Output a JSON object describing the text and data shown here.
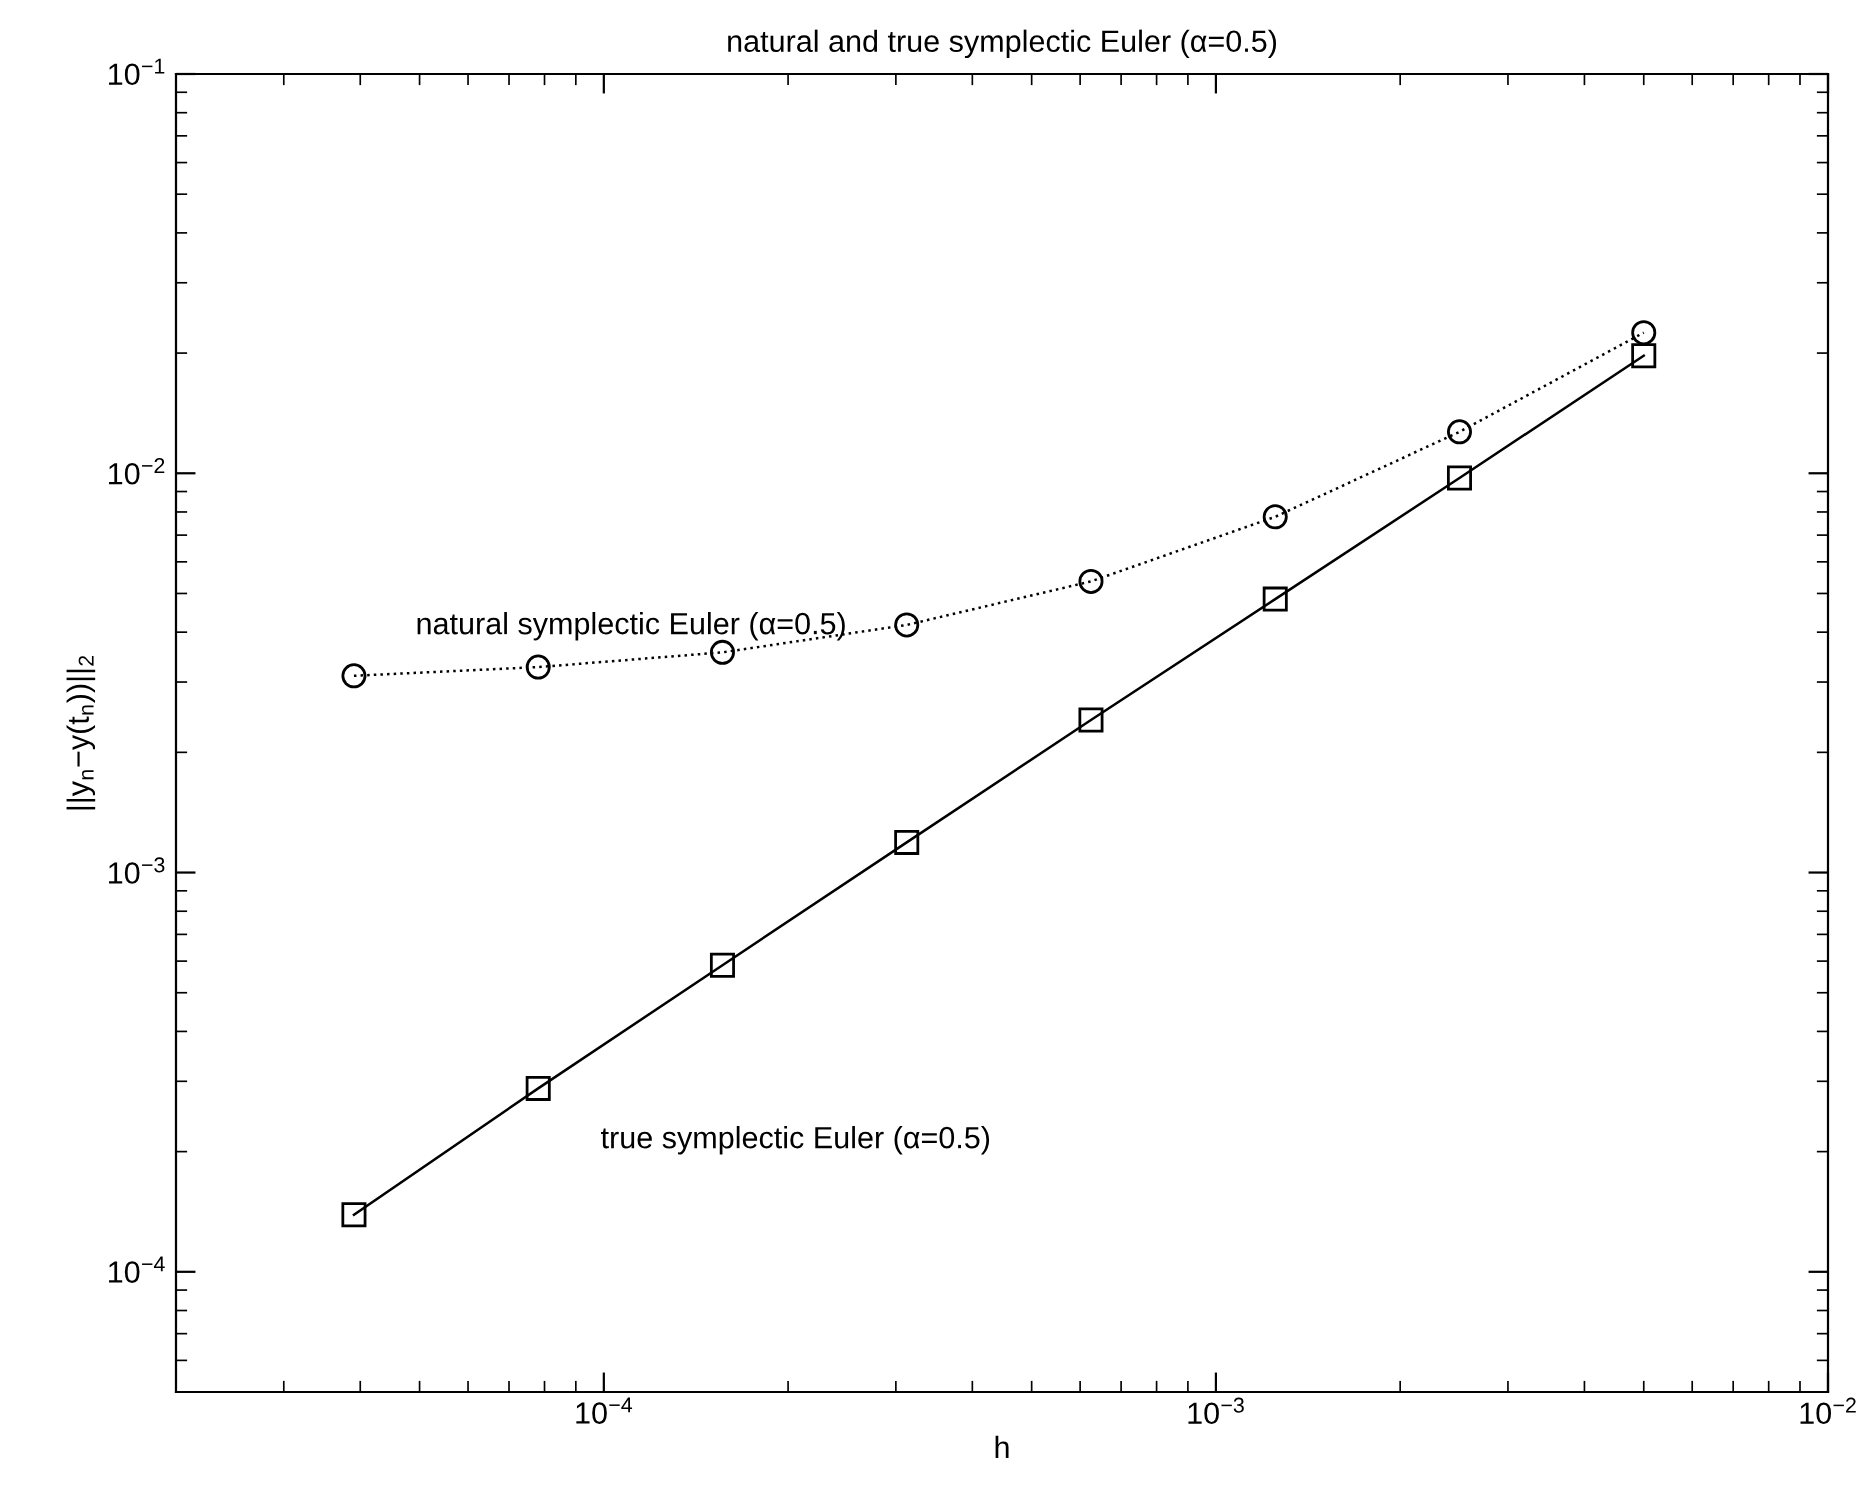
{
  "chart_data": {
    "type": "line",
    "title": "natural and true symplectic Euler (α=0.5)",
    "xlabel": "h",
    "ylabel": "||y$_{n}$−y(t$_{n}$))||$_{2}$",
    "x": [
      3.90625e-05,
      7.8125e-05,
      0.00015625,
      0.0003125,
      0.000625,
      0.00125,
      0.0025,
      0.005
    ],
    "series": [
      {
        "name": "natural symplectic Euler (α=0.5)",
        "color": "#000000",
        "marker": "circle",
        "line_style": "dotted",
        "values": [
          0.00311,
          0.00327,
          0.00356,
          0.00417,
          0.00536,
          0.00778,
          0.0127,
          0.0225
        ]
      },
      {
        "name": "true symplectic Euler (α=0.5)",
        "color": "#000000",
        "marker": "square",
        "line_style": "solid",
        "values": [
          0.000139,
          0.000288,
          0.000586,
          0.00119,
          0.00241,
          0.00484,
          0.00973,
          0.0197
        ]
      }
    ],
    "log": "xy",
    "xlim": [
      2e-05,
      0.01
    ],
    "ylim": [
      5e-05,
      0.1
    ],
    "xticks": [
      {
        "value": 0.0001,
        "label": "10$^{−4}$"
      },
      {
        "value": 0.001,
        "label": "10$^{−3}$"
      },
      {
        "value": 0.01,
        "label": "10$^{−2}$"
      }
    ],
    "yticks": [
      {
        "value": 0.0001,
        "label": "10$^{−4}$"
      },
      {
        "value": 0.001,
        "label": "10$^{−3}$"
      },
      {
        "value": 0.01,
        "label": "10$^{−2}$"
      },
      {
        "value": 0.1,
        "label": "10$^{−1}$"
      }
    ],
    "grid": false,
    "legend": false
  }
}
